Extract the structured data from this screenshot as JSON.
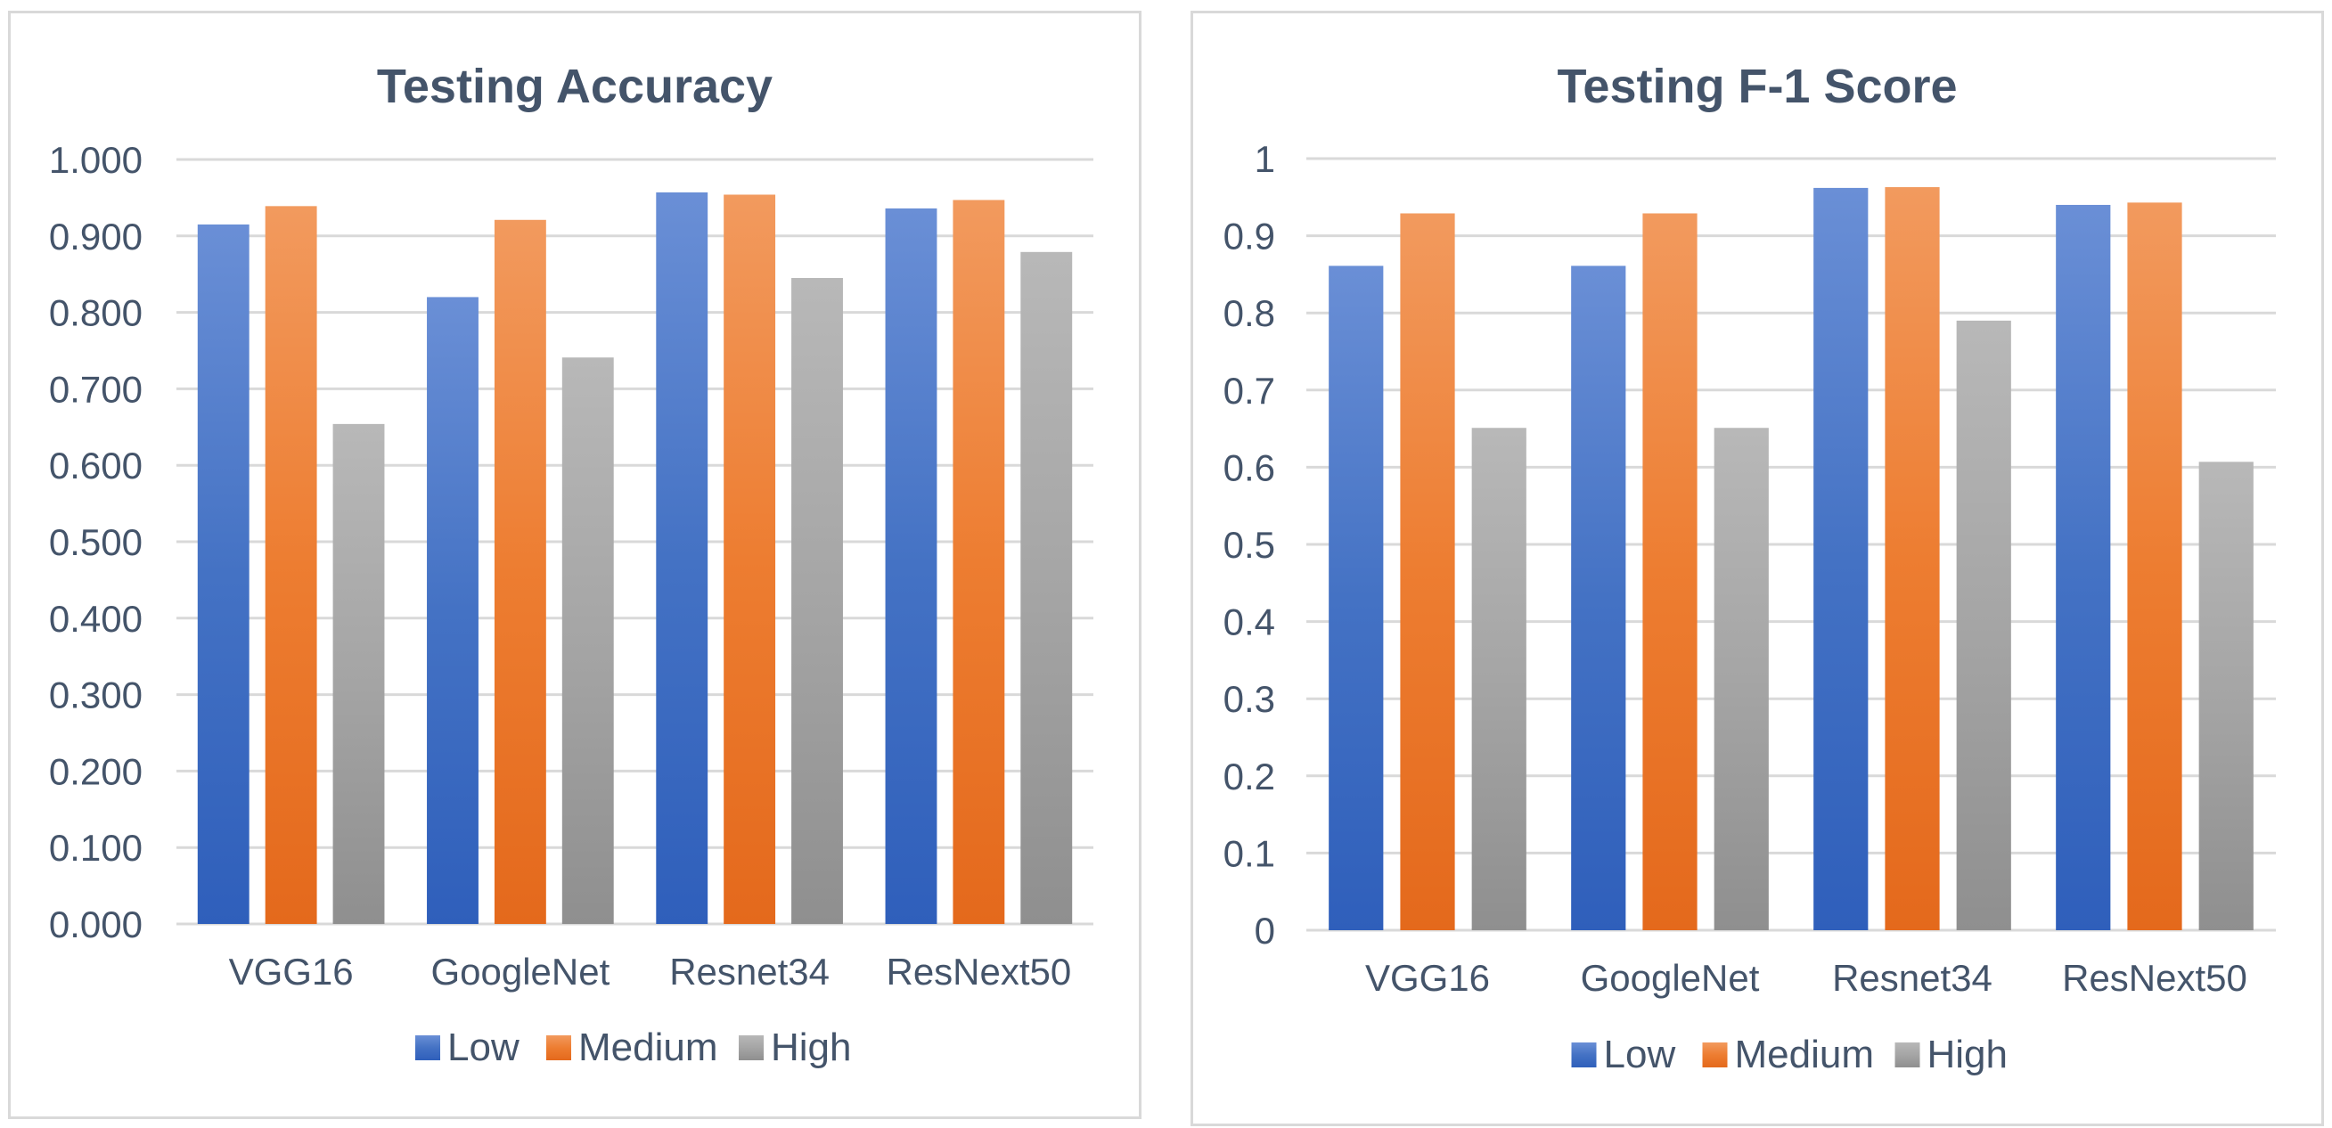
{
  "colors": {
    "Low": "#4472c4",
    "Medium": "#ed7d31",
    "High": "#a5a5a5",
    "grid": "#d9d9d9",
    "text": "#44546a"
  },
  "chart_data": [
    {
      "type": "bar",
      "title": "Testing Accuracy",
      "categories": [
        "VGG16",
        "GoogleNet",
        "Resnet34",
        "ResNext50"
      ],
      "series": [
        {
          "name": "Low",
          "values": [
            0.915,
            0.82,
            0.957,
            0.936
          ]
        },
        {
          "name": "Medium",
          "values": [
            0.939,
            0.921,
            0.954,
            0.947
          ]
        },
        {
          "name": "High",
          "values": [
            0.654,
            0.741,
            0.845,
            0.879
          ]
        }
      ],
      "ylim": [
        0,
        1
      ],
      "yticks": [
        0,
        0.1,
        0.2,
        0.3,
        0.4,
        0.5,
        0.6,
        0.7,
        0.8,
        0.9,
        1.0
      ],
      "ytick_labels": [
        "0.000",
        "0.100",
        "0.200",
        "0.300",
        "0.400",
        "0.500",
        "0.600",
        "0.700",
        "0.800",
        "0.900",
        "1.000"
      ],
      "grid": true,
      "legend": "bottom"
    },
    {
      "type": "bar",
      "title": "Testing F-1 Score",
      "categories": [
        "VGG16",
        "GoogleNet",
        "Resnet34",
        "ResNext50"
      ],
      "series": [
        {
          "name": "Low",
          "values": [
            0.861,
            0.861,
            0.962,
            0.94
          ]
        },
        {
          "name": "Medium",
          "values": [
            0.929,
            0.929,
            0.963,
            0.943
          ]
        },
        {
          "name": "High",
          "values": [
            0.651,
            0.651,
            0.79,
            0.607
          ]
        }
      ],
      "ylim": [
        0,
        1
      ],
      "yticks": [
        0,
        0.1,
        0.2,
        0.3,
        0.4,
        0.5,
        0.6,
        0.7,
        0.8,
        0.9,
        1.0
      ],
      "ytick_labels": [
        "0",
        "0.1",
        "0.2",
        "0.3",
        "0.4",
        "0.5",
        "0.6",
        "0.7",
        "0.8",
        "0.9",
        "1"
      ],
      "grid": true,
      "legend": "bottom"
    }
  ]
}
